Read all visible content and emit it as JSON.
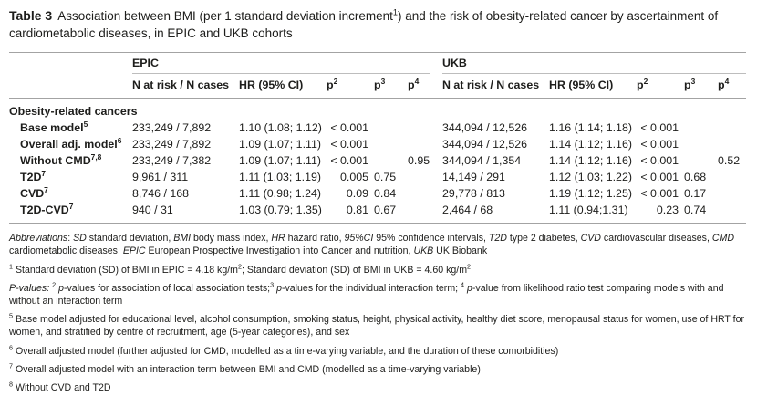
{
  "title": {
    "segments": [
      {
        "t": "Table 3",
        "b": true
      },
      {
        "t": " Association between BMI (per 1 standard deviation increment"
      },
      {
        "t": "1",
        "sup": true
      },
      {
        "t": ") and the risk of obesity-related cancer by ascertainment of cardiometabolic diseases, in EPIC and UKB cohorts"
      }
    ]
  },
  "table": {
    "groups": [
      {
        "label": "EPIC"
      },
      {
        "label": "UKB"
      }
    ],
    "col_headers": {
      "n_label": "N at risk / N cases",
      "hr_label": "HR (95% CI)",
      "p_base": "p",
      "p2_sup": "2",
      "p3_sup": "3",
      "p4_sup": "4"
    },
    "section_label": "Obesity-related cancers",
    "rows": [
      {
        "label": "Base model",
        "label_sup": "5",
        "epic": {
          "n": "233,249 / 7,892",
          "hr": "1.10 (1.08; 1.12)",
          "p2": "< 0.001",
          "p3": "",
          "p4": ""
        },
        "ukb": {
          "n": "344,094 / 12,526",
          "hr": "1.16 (1.14; 1.18)",
          "p2": "< 0.001",
          "p3": "",
          "p4": ""
        }
      },
      {
        "label": "Overall adj. model",
        "label_sup": "6",
        "epic": {
          "n": "233,249 / 7,892",
          "hr": "1.09 (1.07; 1.11)",
          "p2": "< 0.001",
          "p3": "",
          "p4": ""
        },
        "ukb": {
          "n": "344,094 / 12,526",
          "hr": "1.14 (1.12; 1.16)",
          "p2": "< 0.001",
          "p3": "",
          "p4": ""
        }
      },
      {
        "label": "Without CMD",
        "label_sup": "7,8",
        "epic": {
          "n": "233,249 / 7,382",
          "hr": "1.09 (1.07; 1.11)",
          "p2": "< 0.001",
          "p3": "",
          "p4": "0.95"
        },
        "ukb": {
          "n": "344,094 / 1,354",
          "hr": "1.14 (1.12; 1.16)",
          "p2": "< 0.001",
          "p3": "",
          "p4": "0.52"
        }
      },
      {
        "label": "T2D",
        "label_sup": "7",
        "epic": {
          "n": "9,961 / 311",
          "hr": "1.11 (1.03; 1.19)",
          "p2": "0.005",
          "p3": "0.75",
          "p4": ""
        },
        "ukb": {
          "n": "14,149 / 291",
          "hr": "1.12 (1.03; 1.22)",
          "p2": "< 0.001",
          "p3": "0.68",
          "p4": ""
        }
      },
      {
        "label": "CVD",
        "label_sup": "7",
        "epic": {
          "n": "8,746 / 168",
          "hr": "1.11 (0.98; 1.24)",
          "p2": "0.09",
          "p3": "0.84",
          "p4": ""
        },
        "ukb": {
          "n": "29,778 / 813",
          "hr": "1.19 (1.12; 1.25)",
          "p2": "< 0.001",
          "p3": "0.17",
          "p4": ""
        }
      },
      {
        "label": "T2D-CVD",
        "label_sup": "7",
        "epic": {
          "n": "940 / 31",
          "hr": "1.03 (0.79; 1.35)",
          "p2": "0.81",
          "p3": "0.67",
          "p4": ""
        },
        "ukb": {
          "n": "2,464 / 68",
          "hr": "1.11 (0.94;1.31)",
          "p2": "0.23",
          "p3": "0.74",
          "p4": ""
        }
      }
    ]
  },
  "footnotes": {
    "abbreviations": [
      {
        "t": "Abbreviations",
        "i": true
      },
      {
        "t": ": "
      },
      {
        "t": "SD",
        "i": true
      },
      {
        "t": " standard deviation, "
      },
      {
        "t": "BMI",
        "i": true
      },
      {
        "t": " body mass index, "
      },
      {
        "t": "HR",
        "i": true
      },
      {
        "t": " hazard ratio, "
      },
      {
        "t": "95%CI",
        "i": true
      },
      {
        "t": " 95% confidence intervals, "
      },
      {
        "t": "T2D",
        "i": true
      },
      {
        "t": " type 2 diabetes, "
      },
      {
        "t": "CVD",
        "i": true
      },
      {
        "t": " cardiovascular diseases, "
      },
      {
        "t": "CMD",
        "i": true
      },
      {
        "t": " cardiometabolic diseases, "
      },
      {
        "t": "EPIC",
        "i": true
      },
      {
        "t": " European Prospective Investigation into Cancer and nutrition, "
      },
      {
        "t": "UKB",
        "i": true
      },
      {
        "t": " UK Biobank"
      }
    ],
    "fn1": [
      {
        "t": "1",
        "sup": true
      },
      {
        "t": " Standard deviation (SD) of BMI in EPIC = 4.18 kg/m"
      },
      {
        "t": "2",
        "sup": true
      },
      {
        "t": "; Standard deviation (SD) of BMI in UKB = 4.60 kg/m"
      },
      {
        "t": "2",
        "sup": true
      }
    ],
    "pvalues": [
      {
        "t": "P-values:",
        "i": true
      },
      {
        "t": " "
      },
      {
        "t": "2",
        "sup": true
      },
      {
        "t": " "
      },
      {
        "t": "p",
        "i": true
      },
      {
        "t": "-values for association of local association tests;"
      },
      {
        "t": "3",
        "sup": true
      },
      {
        "t": " "
      },
      {
        "t": "p",
        "i": true
      },
      {
        "t": "-values for the individual interaction term; "
      },
      {
        "t": "4",
        "sup": true
      },
      {
        "t": " "
      },
      {
        "t": "p",
        "i": true
      },
      {
        "t": "-value from likelihood ratio test comparing models with and without an interaction term"
      }
    ],
    "fn5": [
      {
        "t": "5",
        "sup": true
      },
      {
        "t": " Base model adjusted for educational level, alcohol consumption, smoking status, height, physical activity, healthy diet score, menopausal status for women, use of HRT for women, and stratified by centre of recruitment, age (5-year categories), and sex"
      }
    ],
    "fn6": [
      {
        "t": "6",
        "sup": true
      },
      {
        "t": " Overall adjusted model (further adjusted for CMD, modelled as a time-varying variable, and the duration of these comorbidities)"
      }
    ],
    "fn7": [
      {
        "t": "7",
        "sup": true
      },
      {
        "t": " Overall adjusted model with an interaction term between BMI and CMD (modelled as a time-varying variable)"
      }
    ],
    "fn8": [
      {
        "t": "8",
        "sup": true
      },
      {
        "t": " Without CVD and T2D"
      }
    ]
  }
}
